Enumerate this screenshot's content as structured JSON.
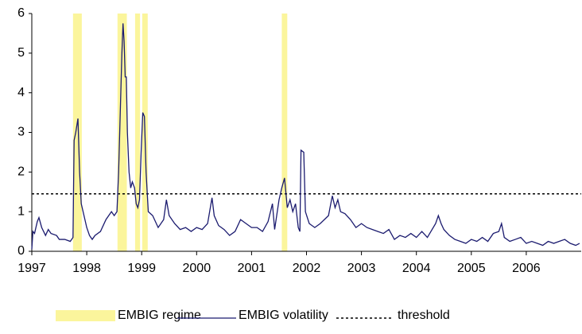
{
  "chart_data": {
    "type": "line",
    "xlim": [
      1997,
      2007
    ],
    "xticks": [
      1997,
      1998,
      1999,
      2000,
      2001,
      2002,
      2003,
      2004,
      2005,
      2006
    ],
    "ylim": [
      0,
      6
    ],
    "yticks": [
      0,
      1,
      2,
      3,
      4,
      5,
      6
    ],
    "legend": "bottom",
    "regimes": {
      "name": "EMBIG regime",
      "color": "#fbf59c",
      "spans": [
        [
          1997.75,
          1997.91
        ],
        [
          1998.56,
          1998.73
        ],
        [
          1998.88,
          1998.97
        ],
        [
          1999.01,
          1999.11
        ],
        [
          2001.55,
          2001.65
        ]
      ]
    },
    "threshold": {
      "name": "threshold",
      "value": 1.45,
      "color": "#000000"
    },
    "x": [
      1997.0,
      1997.02,
      1997.05,
      1997.1,
      1997.13,
      1997.18,
      1997.25,
      1997.3,
      1997.35,
      1997.45,
      1997.5,
      1997.6,
      1997.7,
      1997.75,
      1997.77,
      1997.8,
      1997.84,
      1997.87,
      1997.9,
      1997.95,
      1998.0,
      1998.05,
      1998.1,
      1998.15,
      1998.25,
      1998.35,
      1998.45,
      1998.5,
      1998.55,
      1998.58,
      1998.62,
      1998.64,
      1998.66,
      1998.68,
      1998.7,
      1998.72,
      1998.74,
      1998.77,
      1998.8,
      1998.83,
      1998.87,
      1998.9,
      1998.93,
      1998.96,
      1998.99,
      1999.02,
      1999.05,
      1999.08,
      1999.12,
      1999.2,
      1999.3,
      1999.4,
      1999.45,
      1999.5,
      1999.6,
      1999.7,
      1999.8,
      1999.9,
      2000.0,
      2000.1,
      2000.2,
      2000.28,
      2000.32,
      2000.4,
      2000.5,
      2000.6,
      2000.7,
      2000.8,
      2000.9,
      2001.0,
      2001.1,
      2001.2,
      2001.3,
      2001.38,
      2001.42,
      2001.5,
      2001.55,
      2001.6,
      2001.65,
      2001.7,
      2001.75,
      2001.8,
      2001.85,
      2001.88,
      2001.9,
      2001.95,
      2001.98,
      2002.05,
      2002.15,
      2002.25,
      2002.4,
      2002.47,
      2002.52,
      2002.57,
      2002.62,
      2002.7,
      2002.8,
      2002.9,
      2003.0,
      2003.1,
      2003.2,
      2003.3,
      2003.4,
      2003.5,
      2003.6,
      2003.7,
      2003.8,
      2003.9,
      2004.0,
      2004.1,
      2004.2,
      2004.35,
      2004.4,
      2004.45,
      2004.5,
      2004.6,
      2004.7,
      2004.8,
      2004.9,
      2005.0,
      2005.1,
      2005.2,
      2005.3,
      2005.4,
      2005.5,
      2005.55,
      2005.6,
      2005.7,
      2005.8,
      2005.9,
      2006.0,
      2006.1,
      2006.2,
      2006.3,
      2006.4,
      2006.5,
      2006.6,
      2006.7,
      2006.8,
      2006.9,
      2006.97
    ],
    "series": [
      {
        "name": "EMBIG volatility",
        "color": "#1b1b6f",
        "values": [
          0.05,
          0.5,
          0.45,
          0.75,
          0.85,
          0.6,
          0.4,
          0.55,
          0.45,
          0.4,
          0.3,
          0.3,
          0.25,
          0.35,
          2.8,
          3.0,
          3.35,
          2.0,
          1.2,
          0.9,
          0.6,
          0.4,
          0.3,
          0.4,
          0.5,
          0.8,
          1.0,
          0.9,
          1.0,
          2.0,
          4.0,
          5.0,
          5.75,
          5.3,
          4.4,
          4.4,
          3.0,
          2.0,
          1.6,
          1.75,
          1.6,
          1.2,
          1.1,
          1.3,
          2.5,
          3.5,
          3.4,
          2.0,
          1.0,
          0.9,
          0.6,
          0.8,
          1.3,
          0.9,
          0.7,
          0.55,
          0.6,
          0.5,
          0.6,
          0.55,
          0.7,
          1.35,
          0.9,
          0.65,
          0.55,
          0.4,
          0.5,
          0.8,
          0.7,
          0.6,
          0.6,
          0.5,
          0.75,
          1.2,
          0.55,
          1.3,
          1.6,
          1.85,
          1.1,
          1.3,
          1.0,
          1.2,
          0.6,
          0.5,
          2.55,
          2.5,
          1.0,
          0.7,
          0.6,
          0.7,
          0.9,
          1.4,
          1.1,
          1.3,
          1.0,
          0.95,
          0.8,
          0.6,
          0.7,
          0.6,
          0.55,
          0.5,
          0.45,
          0.55,
          0.3,
          0.4,
          0.35,
          0.45,
          0.35,
          0.5,
          0.35,
          0.7,
          0.9,
          0.7,
          0.55,
          0.4,
          0.3,
          0.25,
          0.2,
          0.3,
          0.25,
          0.35,
          0.25,
          0.45,
          0.5,
          0.7,
          0.35,
          0.25,
          0.3,
          0.35,
          0.2,
          0.25,
          0.2,
          0.15,
          0.25,
          0.2,
          0.25,
          0.3,
          0.2,
          0.15,
          0.2
        ]
      }
    ]
  }
}
